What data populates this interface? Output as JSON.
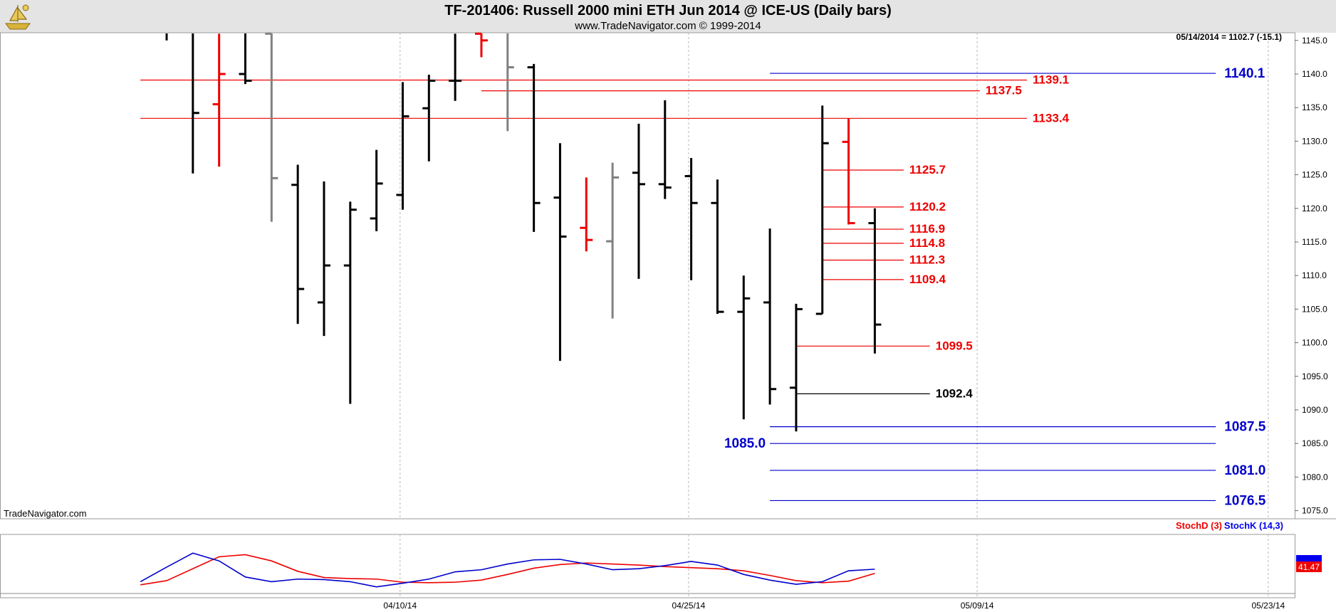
{
  "header": {
    "title": "TF-201406:  Russell 2000 mini ETH Jun 2014 @ ICE-US  (Daily bars)",
    "subtitle": "www.TradeNavigator.com © 1999-2014",
    "last_bar_info": "05/14/2014 = 1102.7 (-15.1)",
    "watermark": "TradeNavigator.com",
    "logo_icon": "ship-icon"
  },
  "colors": {
    "up_bar": "#000000",
    "down_bar": "#ee0000",
    "neutral_bar": "#808080",
    "resistance": "#ee0000",
    "support": "#0000cc",
    "stoch_d": "#ee0000",
    "stoch_k": "#0000ee",
    "header_bg": "#e4e4e4"
  },
  "chart_data": [
    {
      "type": "ohlc",
      "title": "TF-201406:  Russell 2000 mini ETH Jun 2014 @ ICE-US  (Daily bars)",
      "ylim": [
        1072.5,
        1146.5
      ],
      "y_ticks": [
        "1145.0",
        "1140.0",
        "1135.0",
        "1130.0",
        "1125.0",
        "1120.0",
        "1115.0",
        "1110.0",
        "1105.0",
        "1100.0",
        "1095.0",
        "1090.0",
        "1085.0",
        "1080.0",
        "1075.0"
      ],
      "x_tick_labels": [
        {
          "bar": 8.9,
          "label": "04/10/14"
        },
        {
          "bar": 19.9,
          "label": "04/25/14"
        },
        {
          "bar": 30.9,
          "label": "05/09/14"
        },
        {
          "bar": 42.0,
          "label": "05/23/14"
        }
      ],
      "bars": [
        {
          "o": 1147.0,
          "h": 1148.0,
          "l": 1145.0,
          "c": 1146.5,
          "color": "black"
        },
        {
          "o": 1150.0,
          "h": 1152.0,
          "l": 1125.2,
          "c": 1134.2,
          "color": "black"
        },
        {
          "o": 1135.5,
          "h": 1146.0,
          "l": 1126.2,
          "c": 1140.0,
          "color": "red"
        },
        {
          "o": 1140.0,
          "h": 1150.0,
          "l": 1138.5,
          "c": 1139.0,
          "color": "black"
        },
        {
          "o": 1146.0,
          "h": 1150.0,
          "l": 1118.0,
          "c": 1124.5,
          "color": "gray"
        },
        {
          "o": 1123.5,
          "h": 1126.5,
          "l": 1102.8,
          "c": 1108.0,
          "color": "black"
        },
        {
          "o": 1106.0,
          "h": 1124.0,
          "l": 1101.0,
          "c": 1111.5,
          "color": "black"
        },
        {
          "o": 1111.5,
          "h": 1121.0,
          "l": 1090.9,
          "c": 1119.8,
          "color": "black"
        },
        {
          "o": 1118.5,
          "h": 1128.7,
          "l": 1116.6,
          "c": 1123.7,
          "color": "black"
        },
        {
          "o": 1122.0,
          "h": 1138.8,
          "l": 1119.8,
          "c": 1133.7,
          "color": "black"
        },
        {
          "o": 1134.9,
          "h": 1139.9,
          "l": 1127.0,
          "c": 1139.0,
          "color": "black"
        },
        {
          "o": 1139.0,
          "h": 1146.0,
          "l": 1136.0,
          "c": 1139.0,
          "color": "black"
        },
        {
          "o": 1146.0,
          "h": 1152.0,
          "l": 1142.5,
          "c": 1145.0,
          "color": "red"
        },
        {
          "o": 1150.0,
          "h": 1152.0,
          "l": 1131.5,
          "c": 1141.0,
          "color": "gray"
        },
        {
          "o": 1141.0,
          "h": 1141.5,
          "l": 1116.5,
          "c": 1120.8,
          "color": "black"
        },
        {
          "o": 1121.6,
          "h": 1129.7,
          "l": 1097.3,
          "c": 1115.8,
          "color": "black"
        },
        {
          "o": 1117.1,
          "h": 1124.6,
          "l": 1113.6,
          "c": 1115.3,
          "color": "red"
        },
        {
          "o": 1115.1,
          "h": 1126.8,
          "l": 1103.6,
          "c": 1124.6,
          "color": "gray"
        },
        {
          "o": 1125.3,
          "h": 1132.6,
          "l": 1109.5,
          "c": 1123.6,
          "color": "black"
        },
        {
          "o": 1123.6,
          "h": 1136.1,
          "l": 1121.4,
          "c": 1123.1,
          "color": "black"
        },
        {
          "o": 1124.8,
          "h": 1127.5,
          "l": 1109.3,
          "c": 1120.8,
          "color": "black"
        },
        {
          "o": 1120.8,
          "h": 1124.3,
          "l": 1104.3,
          "c": 1104.6,
          "color": "black"
        },
        {
          "o": 1104.6,
          "h": 1110.0,
          "l": 1088.6,
          "c": 1106.6,
          "color": "black"
        },
        {
          "o": 1106.0,
          "h": 1117.0,
          "l": 1090.8,
          "c": 1093.1,
          "color": "black"
        },
        {
          "o": 1093.3,
          "h": 1105.8,
          "l": 1086.8,
          "c": 1105.0,
          "color": "black"
        },
        {
          "o": 1104.3,
          "h": 1135.3,
          "l": 1104.3,
          "c": 1129.7,
          "color": "black"
        },
        {
          "o": 1129.9,
          "h": 1133.4,
          "l": 1117.6,
          "c": 1117.8,
          "color": "red"
        },
        {
          "o": 1117.8,
          "h": 1120.0,
          "l": 1098.4,
          "c": 1102.7,
          "color": "black"
        }
      ],
      "levels": [
        {
          "value": 1140.1,
          "label": "1140.1",
          "color": "blue",
          "from_bar": 23.0,
          "to_bar": 40.0,
          "label_side": "right"
        },
        {
          "value": 1139.1,
          "label": "1139.1",
          "color": "red",
          "from_bar": -1.0,
          "to_bar": 32.8,
          "label_side": "right"
        },
        {
          "value": 1137.5,
          "label": "1137.5",
          "color": "red",
          "from_bar": 12.0,
          "to_bar": 31.0,
          "label_side": "right"
        },
        {
          "value": 1133.4,
          "label": "1133.4",
          "color": "red",
          "from_bar": -1.0,
          "to_bar": 32.8,
          "label_side": "right"
        },
        {
          "value": 1125.7,
          "label": "1125.7",
          "color": "red",
          "from_bar": 25.0,
          "to_bar": 28.1,
          "label_side": "right"
        },
        {
          "value": 1120.2,
          "label": "1120.2",
          "color": "red",
          "from_bar": 25.0,
          "to_bar": 28.1,
          "label_side": "right"
        },
        {
          "value": 1116.9,
          "label": "1116.9",
          "color": "red",
          "from_bar": 25.0,
          "to_bar": 28.1,
          "label_side": "right"
        },
        {
          "value": 1114.8,
          "label": "1114.8",
          "color": "red",
          "from_bar": 25.0,
          "to_bar": 28.1,
          "label_side": "right"
        },
        {
          "value": 1112.3,
          "label": "1112.3",
          "color": "red",
          "from_bar": 25.0,
          "to_bar": 28.1,
          "label_side": "right"
        },
        {
          "value": 1109.4,
          "label": "1109.4",
          "color": "red",
          "from_bar": 25.0,
          "to_bar": 28.1,
          "label_side": "right"
        },
        {
          "value": 1099.5,
          "label": "1099.5",
          "color": "red",
          "from_bar": 24.0,
          "to_bar": 29.1,
          "label_side": "right"
        },
        {
          "value": 1092.4,
          "label": "1092.4",
          "color": "black",
          "from_bar": 24.0,
          "to_bar": 29.1,
          "label_side": "right"
        },
        {
          "value": 1087.5,
          "label": "1087.5",
          "color": "blue",
          "from_bar": 23.0,
          "to_bar": 40.0,
          "label_side": "right"
        },
        {
          "value": 1085.0,
          "label": "1085.0",
          "color": "blue",
          "from_bar": 23.0,
          "to_bar": 40.0,
          "label_side": "left"
        },
        {
          "value": 1081.0,
          "label": "1081.0",
          "color": "blue",
          "from_bar": 23.0,
          "to_bar": 40.0,
          "label_side": "right"
        },
        {
          "value": 1076.5,
          "label": "1076.5",
          "color": "blue",
          "from_bar": 23.0,
          "to_bar": 40.0,
          "label_side": "right"
        }
      ]
    },
    {
      "type": "line",
      "legend": [
        "StochD (3)",
        "StochK (14,3)"
      ],
      "legend_placement": "top-right",
      "ylim": [
        0,
        100
      ],
      "last_value_label": "41.47",
      "series": [
        {
          "name": "StochD (3)",
          "color": "red",
          "x": [
            -1,
            0,
            1,
            2,
            3,
            4,
            5,
            6,
            7,
            8,
            9,
            10,
            11,
            12,
            13,
            14,
            15,
            16,
            17,
            18,
            19,
            20,
            21,
            22,
            23,
            24,
            25,
            26,
            27
          ],
          "values": [
            14,
            22,
            45,
            68,
            72,
            60,
            40,
            28,
            26,
            25,
            19,
            18,
            19,
            23,
            34,
            46,
            53,
            56,
            54,
            52,
            49,
            47,
            45,
            41,
            32,
            22,
            18,
            21,
            36
          ]
        },
        {
          "name": "StochK (14,3)",
          "color": "blue",
          "x": [
            -1,
            0,
            1,
            2,
            3,
            4,
            5,
            6,
            7,
            8,
            9,
            10,
            11,
            12,
            13,
            14,
            15,
            16,
            17,
            18,
            19,
            20,
            21,
            22,
            23,
            24,
            25,
            26,
            27
          ],
          "values": [
            20,
            48,
            75,
            60,
            29,
            20,
            25,
            24,
            20,
            10,
            17,
            25,
            39,
            43,
            54,
            62,
            63,
            54,
            43,
            45,
            51,
            59,
            52,
            34,
            23,
            15,
            20,
            41,
            44
          ]
        }
      ]
    }
  ]
}
